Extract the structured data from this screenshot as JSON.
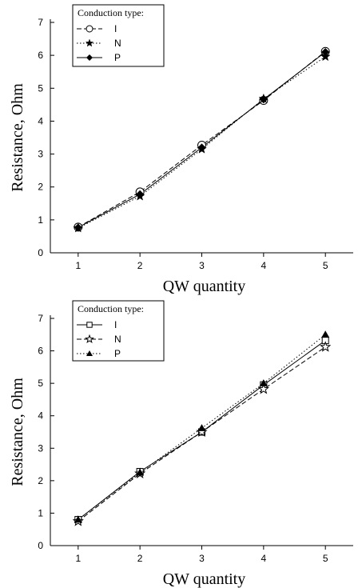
{
  "chart_data": [
    {
      "type": "line",
      "xlabel": "QW quantity",
      "ylabel": "Resistance, Ohm",
      "xlim": [
        0.55,
        5.45
      ],
      "ylim": [
        0,
        7
      ],
      "xticks": [
        1,
        2,
        3,
        4,
        5
      ],
      "yticks": [
        0,
        1,
        2,
        3,
        4,
        5,
        6,
        7
      ],
      "grid": false,
      "legend": {
        "title": "Conduction type:",
        "position": "top-left",
        "entries": [
          {
            "label": "I",
            "marker": "open-circle",
            "line": "dashed"
          },
          {
            "label": "N",
            "marker": "filled-star",
            "line": "dotted"
          },
          {
            "label": "P",
            "marker": "filled-diamond",
            "line": "solid"
          }
        ]
      },
      "x": [
        1,
        2,
        3,
        4,
        5
      ],
      "series": [
        {
          "name": "I",
          "marker": "open-circle",
          "line": "dashed",
          "values": [
            0.78,
            1.85,
            3.27,
            4.63,
            6.12
          ]
        },
        {
          "name": "N",
          "marker": "filled-star",
          "line": "dotted",
          "values": [
            0.75,
            1.72,
            3.15,
            4.68,
            5.96
          ]
        },
        {
          "name": "P",
          "marker": "filled-diamond",
          "line": "solid",
          "values": [
            0.77,
            1.78,
            3.2,
            4.66,
            6.1
          ]
        }
      ]
    },
    {
      "type": "line",
      "xlabel": "QW quantity",
      "ylabel": "Resistance, Ohm",
      "xlim": [
        0.55,
        5.45
      ],
      "ylim": [
        0,
        7
      ],
      "xticks": [
        1,
        2,
        3,
        4,
        5
      ],
      "yticks": [
        0,
        1,
        2,
        3,
        4,
        5,
        6,
        7
      ],
      "grid": false,
      "legend": {
        "title": "Conduction type:",
        "position": "top-left",
        "entries": [
          {
            "label": "I",
            "marker": "open-square",
            "line": "solid"
          },
          {
            "label": "N",
            "marker": "open-star",
            "line": "dashed"
          },
          {
            "label": "P",
            "marker": "filled-triangle",
            "line": "dotted"
          }
        ]
      },
      "x": [
        1,
        2,
        3,
        4,
        5
      ],
      "series": [
        {
          "name": "I",
          "marker": "open-square",
          "line": "solid",
          "values": [
            0.8,
            2.28,
            3.5,
            4.95,
            6.32
          ]
        },
        {
          "name": "N",
          "marker": "open-star",
          "line": "dashed",
          "values": [
            0.75,
            2.22,
            3.5,
            4.82,
            6.12
          ]
        },
        {
          "name": "P",
          "marker": "filled-triangle",
          "line": "dotted",
          "values": [
            0.8,
            2.25,
            3.62,
            5.0,
            6.5
          ]
        }
      ]
    }
  ]
}
